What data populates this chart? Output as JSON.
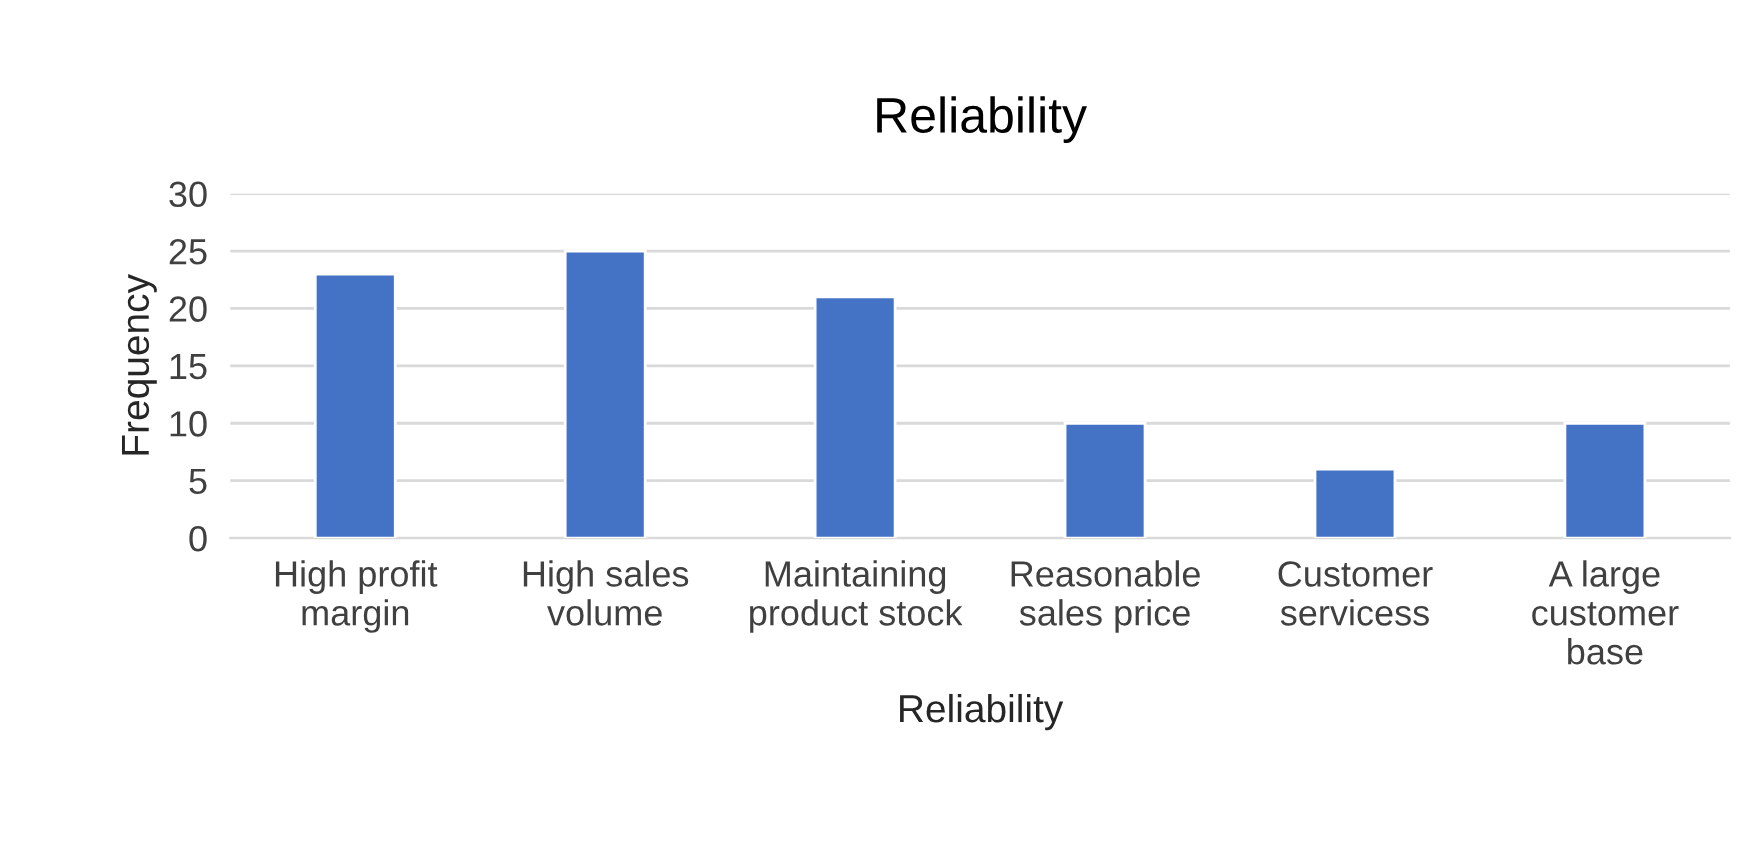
{
  "chart_data": {
    "type": "bar",
    "title": "Reliability",
    "xlabel": "Reliability",
    "ylabel": "Frequency",
    "categories": [
      "High profit\nmargin",
      "High sales\nvolume",
      "Maintaining\nproduct stock",
      "Reasonable\nsales price",
      "Customer\nservicess",
      "A large\ncustomer\nbase"
    ],
    "values": [
      23,
      25,
      21,
      10,
      6,
      10
    ],
    "color": "#4472c4",
    "ylim": [
      0,
      30
    ],
    "yticks": [
      0,
      5,
      10,
      15,
      20,
      25,
      30
    ],
    "grid": "y",
    "legend": false
  }
}
